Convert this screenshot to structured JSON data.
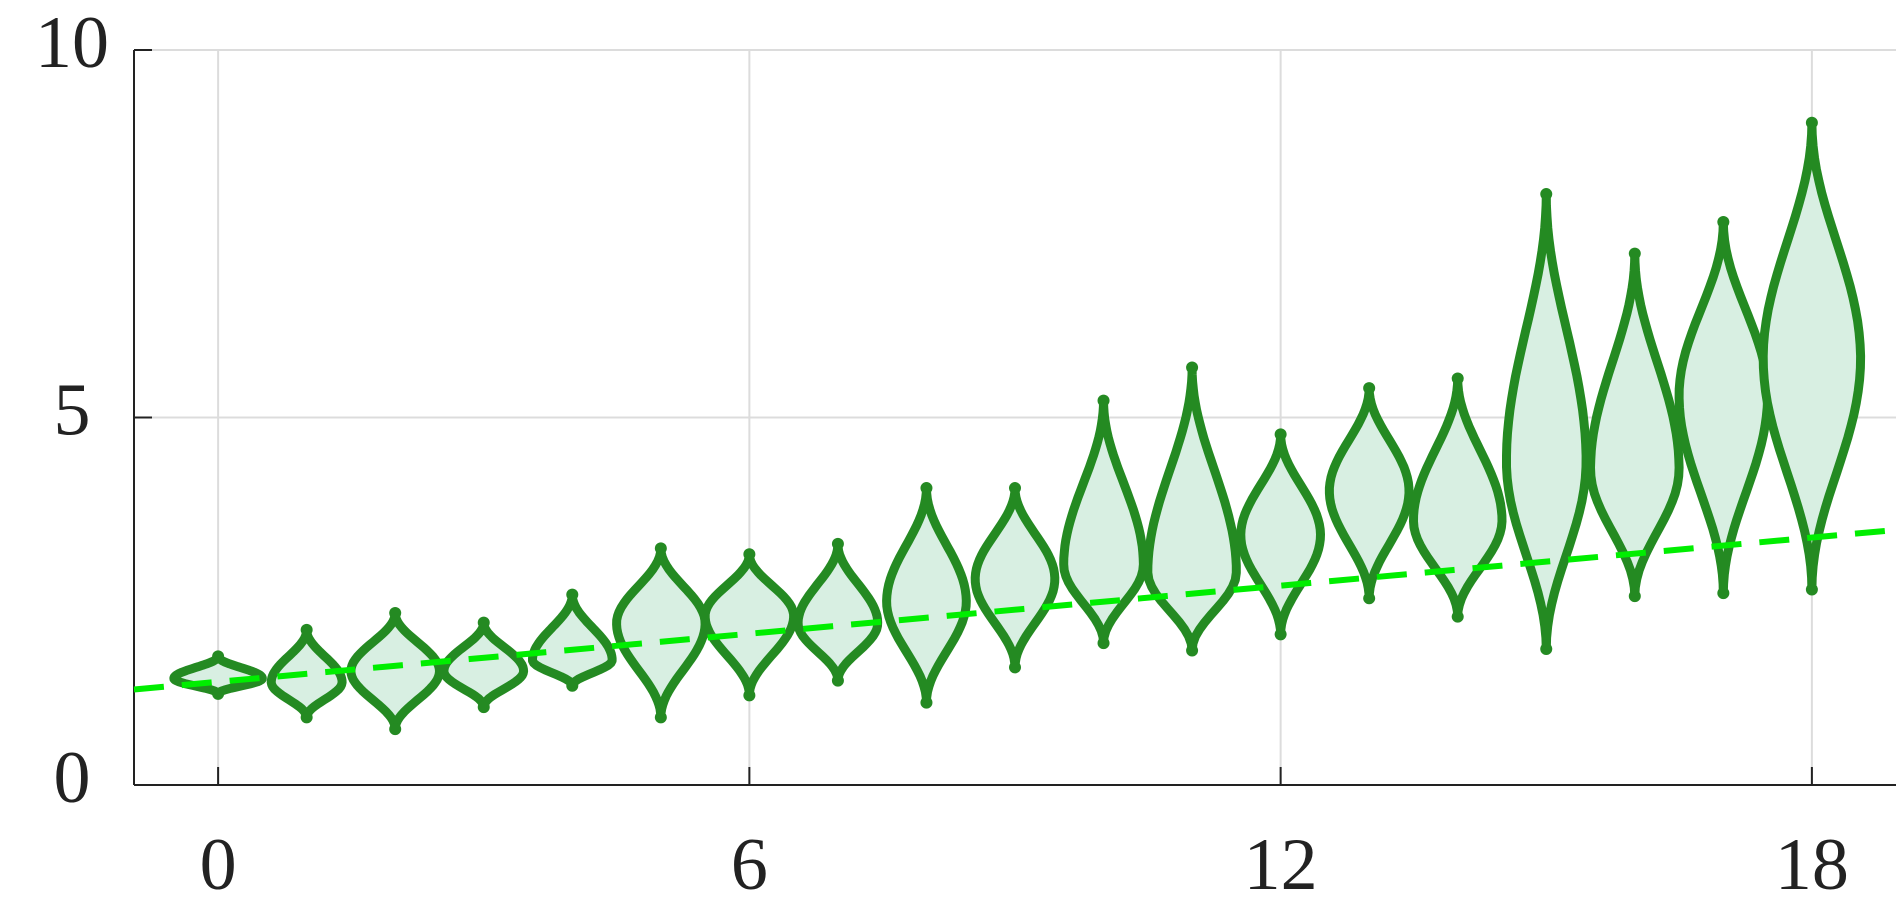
{
  "chart_data": {
    "type": "violin",
    "xlim": [
      -0.95,
      18.95
    ],
    "ylim": [
      0,
      10
    ],
    "xticks": [
      0,
      6,
      12,
      18
    ],
    "yticks": [
      0,
      5,
      10
    ],
    "grid": true,
    "color": "#248a22",
    "fill": "#d8efe2",
    "violins": [
      {
        "x": 0,
        "min": 1.24,
        "max": 1.75,
        "center": 1.45,
        "half_width": 0.5
      },
      {
        "x": 1,
        "min": 0.92,
        "max": 2.11,
        "center": 1.4,
        "half_width": 0.4
      },
      {
        "x": 2,
        "min": 0.76,
        "max": 2.34,
        "center": 1.55,
        "half_width": 0.5
      },
      {
        "x": 3,
        "min": 1.06,
        "max": 2.21,
        "center": 1.55,
        "half_width": 0.45
      },
      {
        "x": 4,
        "min": 1.35,
        "max": 2.59,
        "center": 1.7,
        "half_width": 0.45
      },
      {
        "x": 5,
        "min": 0.92,
        "max": 3.22,
        "center": 2.2,
        "half_width": 0.5
      },
      {
        "x": 6,
        "min": 1.22,
        "max": 3.14,
        "center": 2.3,
        "half_width": 0.5
      },
      {
        "x": 7,
        "min": 1.42,
        "max": 3.28,
        "center": 2.2,
        "half_width": 0.45
      },
      {
        "x": 8,
        "min": 1.12,
        "max": 4.04,
        "center": 2.5,
        "half_width": 0.45
      },
      {
        "x": 9,
        "min": 1.6,
        "max": 4.04,
        "center": 2.8,
        "half_width": 0.45
      },
      {
        "x": 10,
        "min": 1.93,
        "max": 5.23,
        "center": 3.0,
        "half_width": 0.45
      },
      {
        "x": 11,
        "min": 1.83,
        "max": 5.68,
        "center": 2.9,
        "half_width": 0.5
      },
      {
        "x": 12,
        "min": 2.05,
        "max": 4.77,
        "center": 3.4,
        "half_width": 0.45
      },
      {
        "x": 13,
        "min": 2.54,
        "max": 5.4,
        "center": 4.0,
        "half_width": 0.45
      },
      {
        "x": 14,
        "min": 2.29,
        "max": 5.53,
        "center": 3.6,
        "half_width": 0.5
      },
      {
        "x": 15,
        "min": 1.85,
        "max": 8.04,
        "center": 4.4,
        "half_width": 0.45
      },
      {
        "x": 16,
        "min": 2.57,
        "max": 7.23,
        "center": 4.3,
        "half_width": 0.5
      },
      {
        "x": 17,
        "min": 2.61,
        "max": 7.66,
        "center": 5.3,
        "half_width": 0.5
      },
      {
        "x": 18,
        "min": 2.66,
        "max": 9.01,
        "center": 5.8,
        "half_width": 0.55
      }
    ],
    "trend": {
      "x": [
        -0.95,
        18.95
      ],
      "values": [
        1.3,
        3.47
      ],
      "color": "#00ee00",
      "dashed": true
    }
  }
}
